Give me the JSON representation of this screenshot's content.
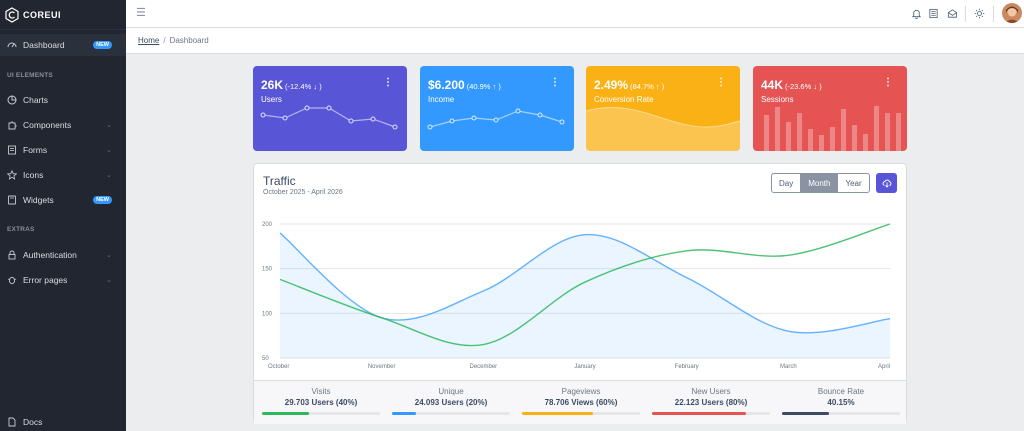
{
  "brand": {
    "name": "COREUI"
  },
  "sidebar": {
    "items": [
      {
        "label": "Dashboard",
        "badge": "NEW",
        "icon": "speedometer-icon"
      },
      {
        "label": "Charts",
        "icon": "chart-pie-icon"
      },
      {
        "label": "Components",
        "icon": "puzzle-icon"
      },
      {
        "label": "Forms",
        "icon": "notes-icon"
      },
      {
        "label": "Icons",
        "icon": "star-icon"
      },
      {
        "label": "Widgets",
        "badge": "NEW",
        "icon": "calculator-icon"
      },
      {
        "label": "Authentication",
        "icon": "lock-icon"
      },
      {
        "label": "Error pages",
        "icon": "bug-icon"
      },
      {
        "label": "Docs",
        "icon": "description-icon"
      }
    ],
    "sections": {
      "ui_elements": "UI ELEMENTS",
      "extras": "EXTRAS"
    }
  },
  "header": {
    "icons": [
      "bell-icon",
      "list-icon",
      "envelope-icon",
      "sun-icon"
    ]
  },
  "breadcrumb": {
    "home": "Home",
    "separator": "/",
    "current": "Dashboard"
  },
  "widgets": [
    {
      "value": "26K",
      "change": "(-12.4% ↓ )",
      "label": "Users",
      "color": "#5856d6",
      "menu": "⋮"
    },
    {
      "value": "$6.200",
      "change": "(40.9% ↑ )",
      "label": "Income",
      "color": "#3399ff",
      "menu": "⋮"
    },
    {
      "value": "2.49%",
      "change": "(84.7% ↑ )",
      "label": "Conversion Rate",
      "color": "#f9b115",
      "menu": "⋮"
    },
    {
      "value": "44K",
      "change": "(-23.6% ↓ )",
      "label": "Sessions",
      "color": "#e55353",
      "menu": "⋮"
    }
  ],
  "traffic": {
    "title": "Traffic",
    "subtitle": "October 2025 - April 2026",
    "periods": [
      "Day",
      "Month",
      "Year"
    ],
    "active_period": "Month",
    "stats": [
      {
        "label": "Visits",
        "value": "29.703 Users (40%)",
        "progress": 40,
        "color": "#2eb85c"
      },
      {
        "label": "Unique",
        "value": "24.093 Users (20%)",
        "progress": 20,
        "color": "#3399ff"
      },
      {
        "label": "Pageviews",
        "value": "78.706 Views (60%)",
        "progress": 60,
        "color": "#f9b115"
      },
      {
        "label": "New Users",
        "value": "22.123 Users (80%)",
        "progress": 80,
        "color": "#e55353"
      },
      {
        "label": "Bounce Rate",
        "value": "40.15%",
        "progress": 40,
        "color": "#3c4b64"
      }
    ]
  },
  "chart_data": {
    "type": "line",
    "categories": [
      "October",
      "November",
      "December",
      "January",
      "February",
      "March",
      "April"
    ],
    "ylim": [
      50,
      200
    ],
    "yticks": [
      50,
      100,
      150,
      200
    ],
    "grid": true,
    "series": [
      {
        "color": "#3399ff",
        "fill": true,
        "values": [
          190,
          95,
          125,
          188,
          140,
          80,
          94
        ]
      },
      {
        "color": "#2eb85c",
        "fill": false,
        "values": [
          138,
          95,
          65,
          135,
          170,
          165,
          200
        ]
      }
    ]
  }
}
